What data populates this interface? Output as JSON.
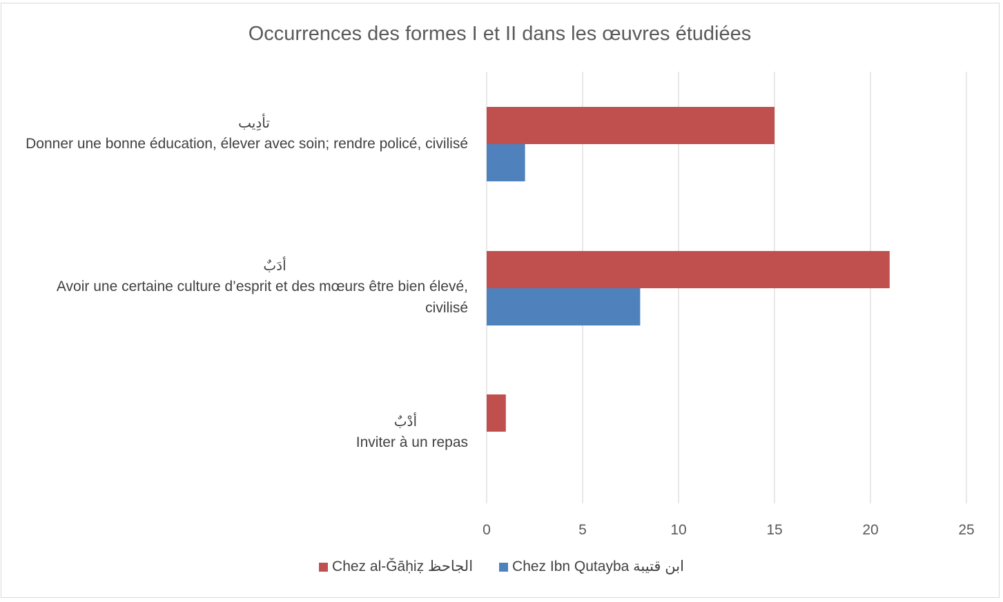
{
  "chart_data": {
    "type": "bar",
    "orientation": "horizontal",
    "title": "Occurrences des formes I et II dans les œuvres étudiées",
    "categories": [
      {
        "arabic": "تأدِيب",
        "label": "Donner une bonne éducation, élever avec soin; rendre policé, civilisé"
      },
      {
        "arabic": "أدَبٌ",
        "label": "Avoir une certaine culture d’esprit et des mœurs être bien élevé, civilisé"
      },
      {
        "arabic": "أدْبٌ",
        "label": "Inviter à un repas"
      }
    ],
    "series": [
      {
        "name": "Chez al-Ǧāḥiẓ الجاحظ",
        "color": "#c0504d",
        "values": [
          15,
          21,
          1
        ]
      },
      {
        "name": "Chez Ibn Qutayba ابن قتيبة",
        "color": "#4f81bd",
        "values": [
          2,
          8,
          0
        ]
      }
    ],
    "xlim": [
      0,
      25
    ],
    "xticks": [
      "0",
      "5",
      "10",
      "15",
      "20",
      "25"
    ],
    "grid": true,
    "legend": "bottom",
    "xlabel": "",
    "ylabel": ""
  }
}
